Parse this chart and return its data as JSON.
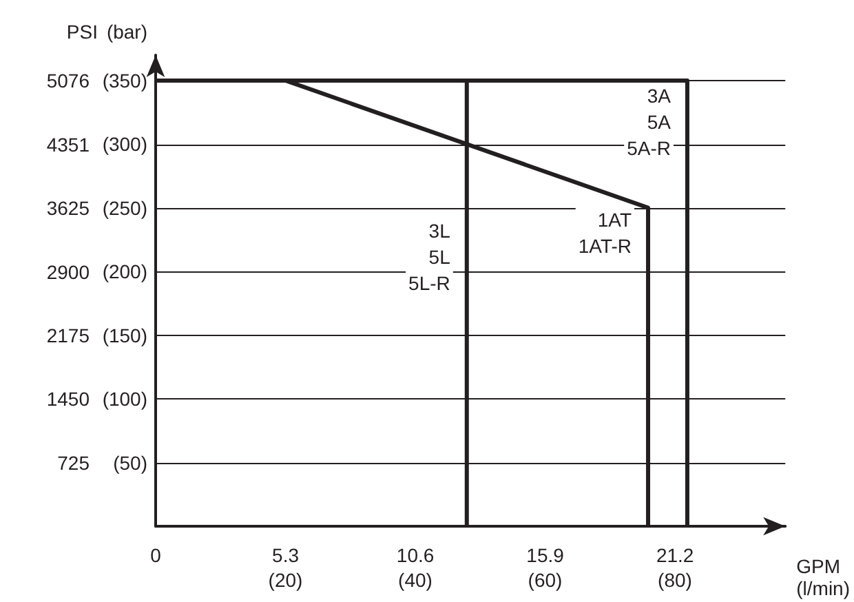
{
  "chart_data": {
    "type": "line",
    "xlabel": "GPM",
    "x2label": "(l/min)",
    "ylabel": "PSI",
    "y2label": "(bar)",
    "series": [
      {
        "color": "#231f20",
        "x": [
          0,
          12.7,
          12.7
        ],
        "values": [
          5080,
          5080,
          0
        ]
      },
      {
        "color": "#231f20",
        "x": [
          0,
          5.3,
          20.1,
          20.1
        ],
        "values": [
          5080,
          5080,
          3630,
          0
        ]
      },
      {
        "color": "#231f20",
        "x": [
          0,
          21.7,
          21.7
        ],
        "values": [
          5080,
          5080,
          0
        ]
      }
    ],
    "xlim": [
      0,
      25.7
    ],
    "xticks": [
      0,
      5.3,
      10.6,
      15.9,
      21.2
    ],
    "x2lim": [
      0,
      97
    ],
    "x2ticks": [
      {
        "value": 20,
        "label": "(20)"
      },
      {
        "value": 40,
        "label": "(40)"
      },
      {
        "value": 60,
        "label": "(60)"
      },
      {
        "value": 80,
        "label": "(80)"
      }
    ],
    "ylim": [
      0,
      5370
    ],
    "yticks": [
      725,
      1450,
      2175,
      2900,
      3625,
      4351,
      5076
    ],
    "y2lim": [
      0,
      370
    ],
    "y2ticks": [
      {
        "value": 50,
        "label": "(50)"
      },
      {
        "value": 100,
        "label": "(100)"
      },
      {
        "value": 150,
        "label": "(150)"
      },
      {
        "value": 200,
        "label": "(200)"
      },
      {
        "value": 250,
        "label": "(250)"
      },
      {
        "value": 300,
        "label": "(300)"
      },
      {
        "value": 350,
        "label": "(350)"
      }
    ],
    "grid": "y",
    "marker": "none",
    "line_style": "solid",
    "annotations": [
      "3L\n5L\n5L-R",
      "1AT\n1AT-R",
      "3A\n5A\n5A-R"
    ]
  }
}
